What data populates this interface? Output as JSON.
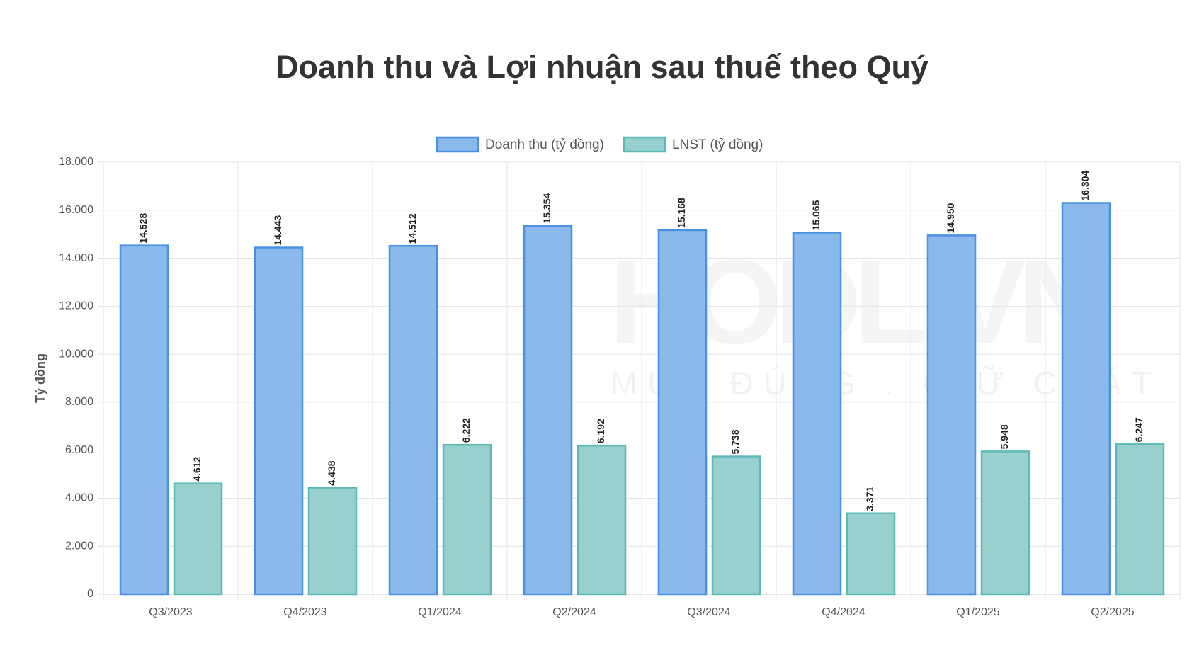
{
  "chart_data": {
    "type": "bar",
    "title": "Doanh thu và Lợi nhuận sau thuế theo Quý",
    "y_label": "Tỷ đồng",
    "watermark": {
      "title": "HODL.VN",
      "subtitle": "MUA ĐÚNG . GIỮ CHẶT"
    },
    "categories": [
      "Q3/2023",
      "Q4/2023",
      "Q1/2024",
      "Q2/2024",
      "Q3/2024",
      "Q4/2024",
      "Q1/2025",
      "Q2/2025"
    ],
    "series": [
      {
        "name": "Doanh thu (tỷ đồng)",
        "color": "#8ab9ec",
        "border": "#4a90e2",
        "values": [
          14528,
          14443,
          14512,
          15354,
          15168,
          15065,
          14950,
          16304
        ],
        "value_labels": [
          "14.528",
          "14.443",
          "14.512",
          "15.354",
          "15.168",
          "15.065",
          "14.950",
          "16.304"
        ]
      },
      {
        "name": "LNST (tỷ đồng)",
        "color": "#98d0cf",
        "border": "#5bbab6",
        "values": [
          4612,
          4438,
          6222,
          6192,
          5738,
          3371,
          5948,
          6247
        ],
        "value_labels": [
          "4.612",
          "4.438",
          "6.222",
          "6.192",
          "5.738",
          "3.371",
          "5.948",
          "6.247"
        ]
      }
    ],
    "ylim": [
      0,
      18000
    ],
    "yticks": [
      {
        "value": 0,
        "label": "0"
      },
      {
        "value": 2000,
        "label": "2.000"
      },
      {
        "value": 4000,
        "label": "4.000"
      },
      {
        "value": 6000,
        "label": "6.000"
      },
      {
        "value": 8000,
        "label": "8.000"
      },
      {
        "value": 10000,
        "label": "10.000"
      },
      {
        "value": 12000,
        "label": "12.000"
      },
      {
        "value": 14000,
        "label": "14.000"
      },
      {
        "value": 16000,
        "label": "16.000"
      },
      {
        "value": 18000,
        "label": "18.000"
      }
    ],
    "grid": true,
    "legend": "top"
  }
}
